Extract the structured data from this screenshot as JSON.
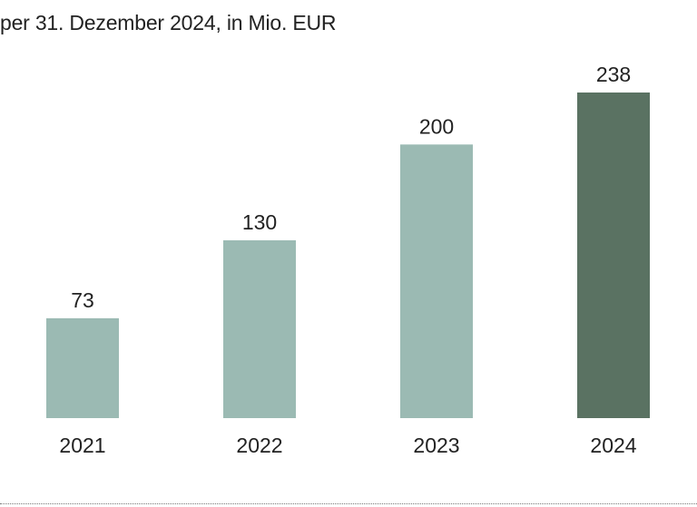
{
  "chart_data": {
    "type": "bar",
    "subtitle": "per 31. Dezember 2024, in Mio. EUR",
    "categories": [
      "2021",
      "2022",
      "2023",
      "2024"
    ],
    "values": [
      73,
      130,
      200,
      238
    ],
    "data_labels": [
      "73",
      "130",
      "200",
      "238"
    ],
    "ylim": [
      0,
      238
    ],
    "grid": false,
    "legend": "none",
    "colors": {
      "default_bar": "#9bbab3",
      "highlight_bar": "#5a7262",
      "label_text": "#222222"
    },
    "highlight_index": 3
  }
}
